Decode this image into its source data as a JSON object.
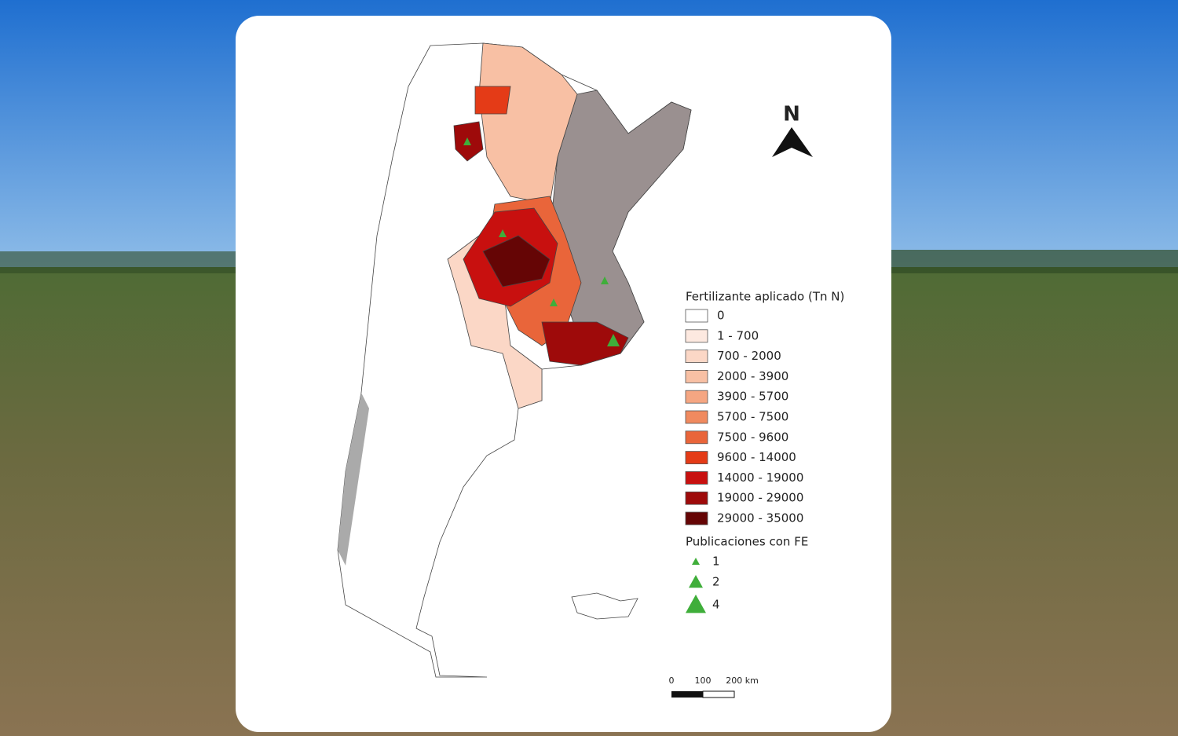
{
  "north_label": "N",
  "legend": {
    "title": "Fertilizante aplicado (Tn N)",
    "items": [
      {
        "label": "0",
        "color": "#ffffff"
      },
      {
        "label": "1 - 700",
        "color": "#fde9e0"
      },
      {
        "label": "700 - 2000",
        "color": "#fbd7c6"
      },
      {
        "label": "2000 - 3900",
        "color": "#f8c0a4"
      },
      {
        "label": "3900 - 5700",
        "color": "#f5a682"
      },
      {
        "label": "5700 - 7500",
        "color": "#f08a5f"
      },
      {
        "label": "7500 - 9600",
        "color": "#e9653a"
      },
      {
        "label": "9600 - 14000",
        "color": "#e43b17"
      },
      {
        "label": "14000 - 19000",
        "color": "#c8100f"
      },
      {
        "label": "19000 - 29000",
        "color": "#9e0a0a"
      },
      {
        "label": "29000 - 35000",
        "color": "#650505"
      }
    ]
  },
  "symbols": {
    "title": "Publicaciones con FE",
    "color": "#3fae3a",
    "items": [
      {
        "label": "1"
      },
      {
        "label": "2"
      },
      {
        "label": "4"
      }
    ]
  },
  "scale": {
    "labels": [
      "0",
      "100",
      "200 km"
    ]
  }
}
